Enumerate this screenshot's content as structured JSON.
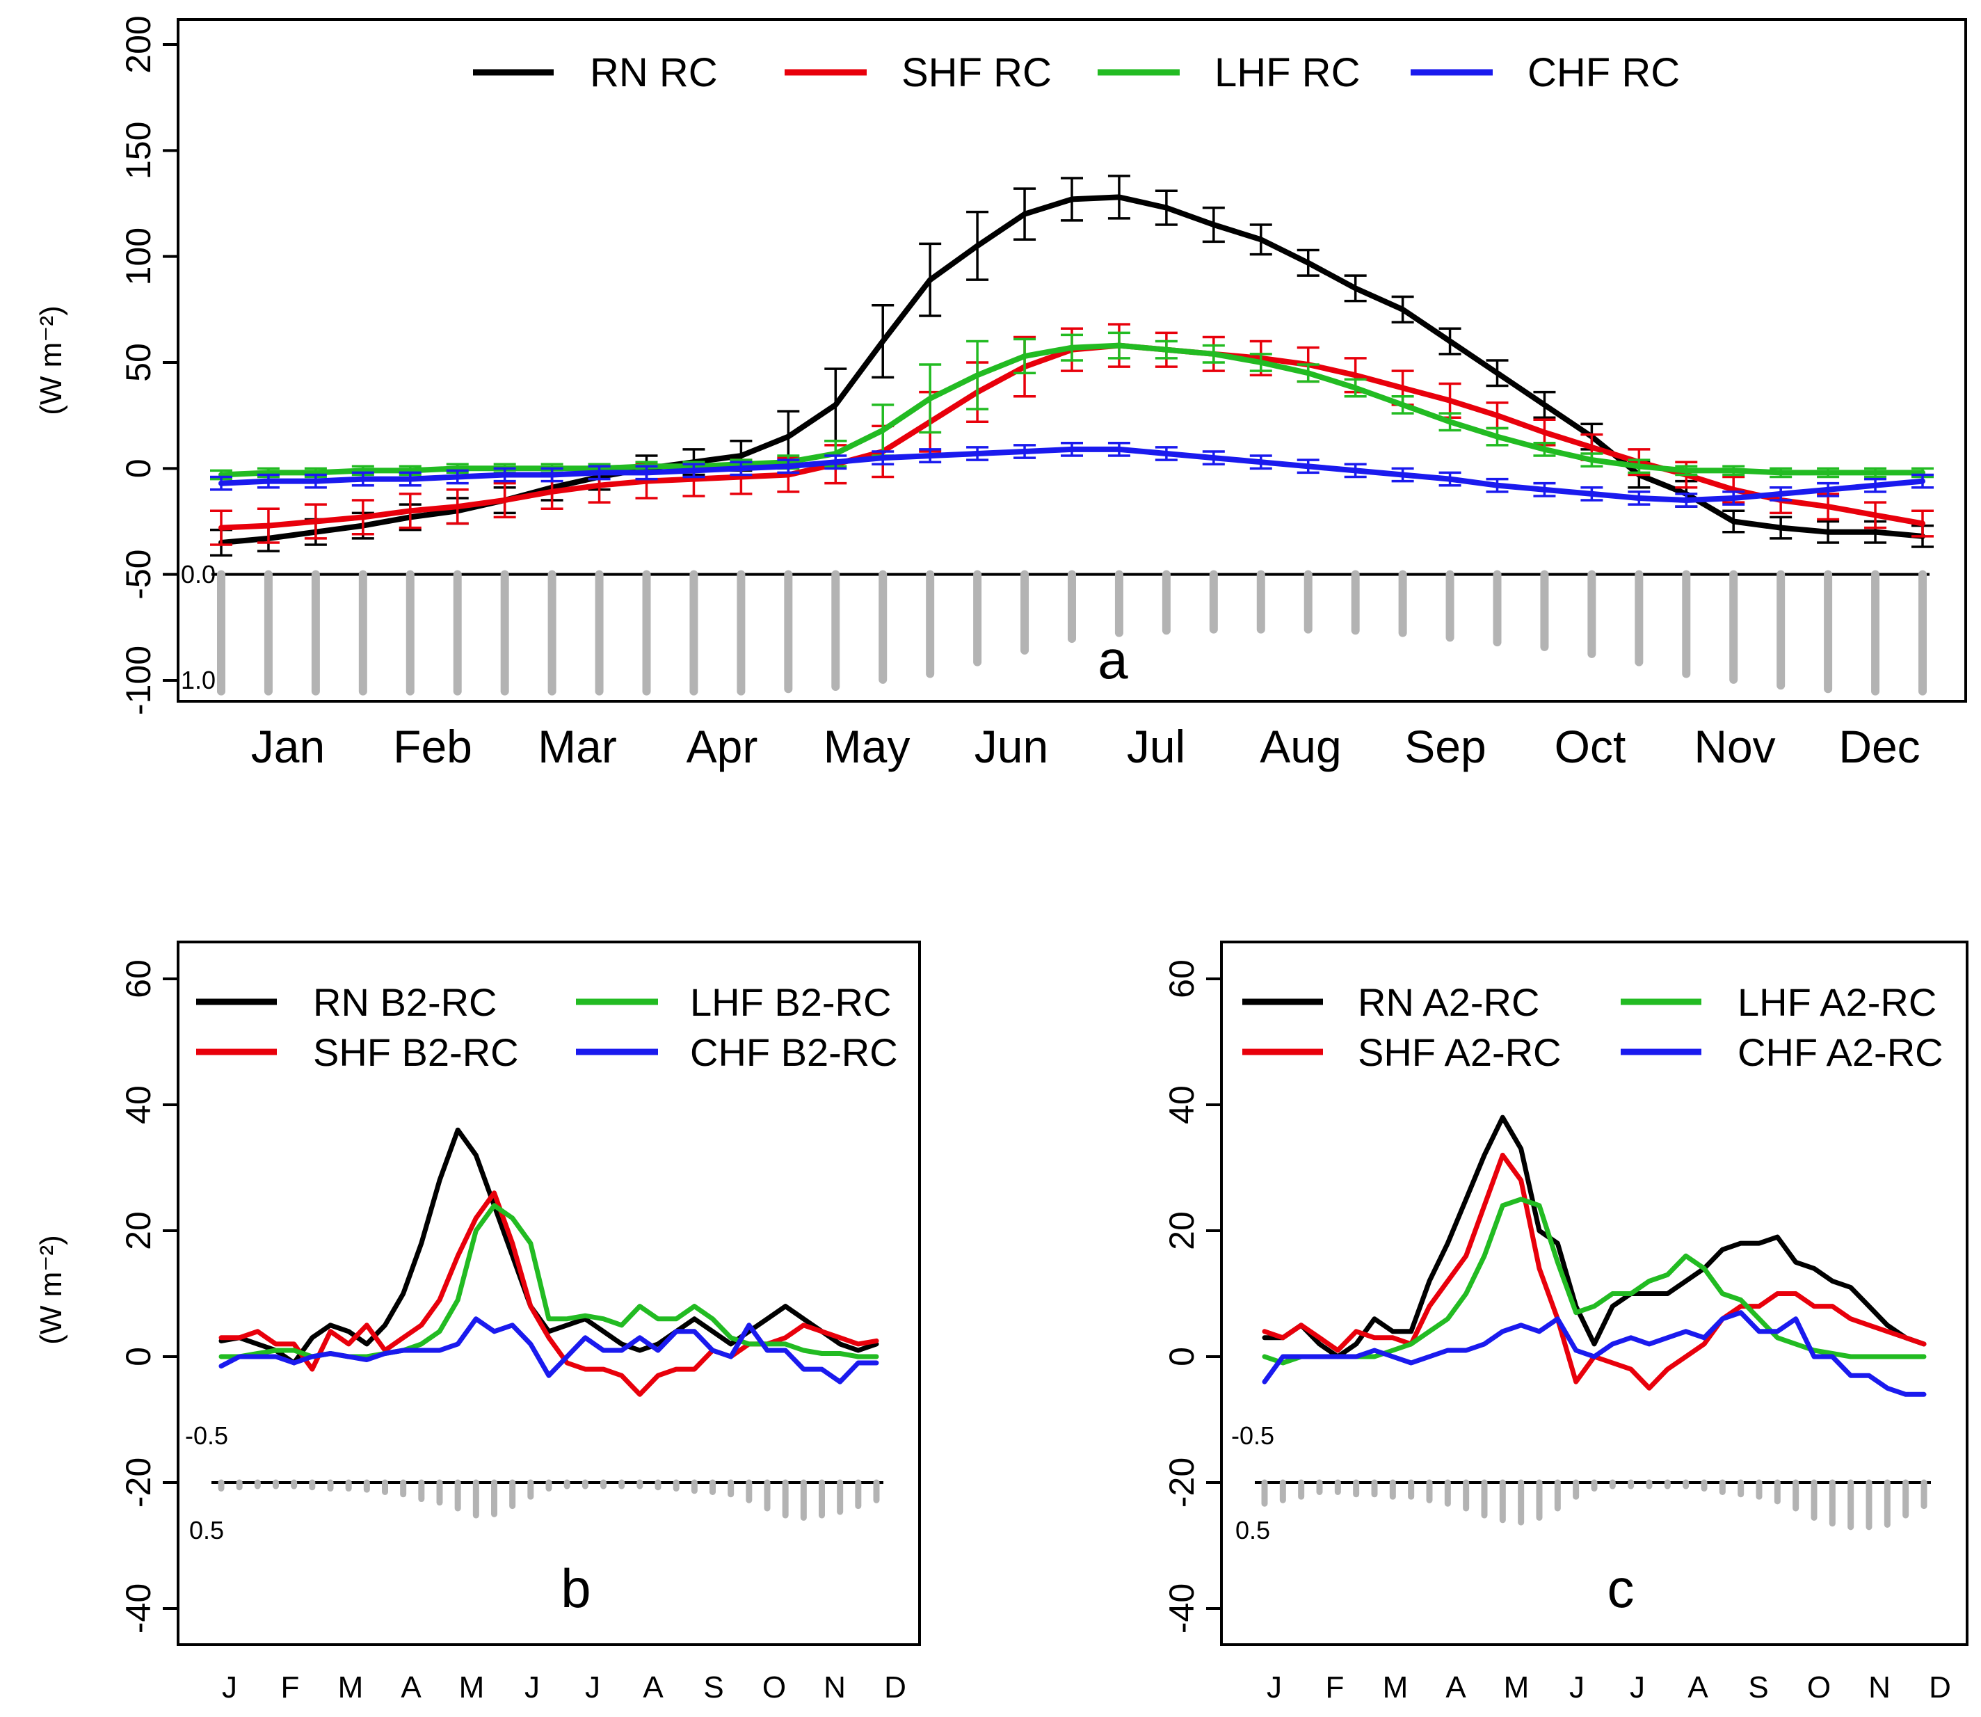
{
  "chart_data": [
    {
      "id": "a",
      "type": "line",
      "panel_label": "a",
      "ylabel": "(W m⁻²)",
      "ylim": [
        -100,
        200
      ],
      "yticks": [
        -100,
        -50,
        0,
        50,
        100,
        150,
        200
      ],
      "ytick_labels": [
        "-100",
        "-50",
        "0",
        "50",
        "100",
        "150",
        "200"
      ],
      "x_range": [
        0.5,
        36.5
      ],
      "month_labels": [
        "Jan",
        "Feb",
        "Mar",
        "Apr",
        "May",
        "Jun",
        "Jul",
        "Aug",
        "Sep",
        "Oct",
        "Nov",
        "Dec"
      ],
      "legend": [
        "RN RC",
        "SHF RC",
        "LHF RC",
        "CHF RC"
      ],
      "series": [
        {
          "name": "RN RC",
          "color": "#000000",
          "with_error_bars": true,
          "values": [
            -35,
            -33,
            -30,
            -27,
            -23,
            -20,
            -15,
            -9,
            -4,
            0,
            3,
            6,
            15,
            30,
            60,
            89,
            105,
            120,
            127,
            128,
            123,
            115,
            108,
            97,
            85,
            75,
            60,
            45,
            30,
            15,
            -3,
            -12,
            -25,
            -28,
            -30,
            -30,
            -32
          ],
          "err": [
            6,
            6,
            6,
            6,
            6,
            6,
            6,
            6,
            6,
            6,
            6,
            7,
            12,
            17,
            17,
            17,
            16,
            12,
            10,
            10,
            8,
            8,
            7,
            6,
            6,
            6,
            6,
            6,
            6,
            6,
            6,
            6,
            5,
            5,
            5,
            5,
            5
          ]
        },
        {
          "name": "SHF RC",
          "color": "#e8000b",
          "with_error_bars": true,
          "values": [
            -28,
            -27,
            -25,
            -23,
            -20,
            -18,
            -15,
            -11,
            -8,
            -6,
            -5,
            -4,
            -3,
            2,
            8,
            22,
            36,
            48,
            56,
            58,
            56,
            54,
            52,
            49,
            44,
            38,
            32,
            25,
            17,
            10,
            3,
            -3,
            -10,
            -15,
            -18,
            -22,
            -26
          ],
          "err": [
            8,
            8,
            8,
            8,
            8,
            8,
            8,
            8,
            8,
            8,
            8,
            8,
            8,
            9,
            12,
            14,
            14,
            14,
            10,
            10,
            8,
            8,
            8,
            8,
            8,
            8,
            8,
            6,
            6,
            6,
            6,
            6,
            6,
            6,
            6,
            6,
            6
          ]
        },
        {
          "name": "LHF RC",
          "color": "#22bb22",
          "with_error_bars": true,
          "values": [
            -3,
            -2,
            -2,
            -1,
            -1,
            0,
            0,
            0,
            0,
            1,
            1,
            2,
            3,
            7,
            18,
            33,
            44,
            53,
            57,
            58,
            56,
            54,
            50,
            45,
            38,
            30,
            22,
            15,
            9,
            4,
            1,
            -1,
            -1,
            -2,
            -2,
            -2,
            -2
          ],
          "err": [
            2,
            2,
            2,
            2,
            2,
            2,
            2,
            2,
            2,
            2,
            2,
            2,
            3,
            6,
            12,
            16,
            16,
            8,
            6,
            6,
            4,
            4,
            4,
            4,
            4,
            4,
            4,
            4,
            3,
            3,
            3,
            2,
            2,
            2,
            2,
            2,
            2
          ]
        },
        {
          "name": "CHF RC",
          "color": "#1a1aee",
          "with_error_bars": true,
          "values": [
            -7,
            -6,
            -6,
            -5,
            -5,
            -4,
            -3,
            -3,
            -2,
            -2,
            -1,
            0,
            1,
            3,
            5,
            6,
            7,
            8,
            9,
            9,
            7,
            5,
            3,
            1,
            -1,
            -3,
            -5,
            -8,
            -10,
            -12,
            -14,
            -15,
            -14,
            -12,
            -10,
            -8,
            -6
          ],
          "err": [
            3,
            3,
            3,
            3,
            3,
            3,
            3,
            3,
            3,
            3,
            3,
            3,
            3,
            3,
            3,
            3,
            3,
            3,
            3,
            3,
            3,
            3,
            3,
            3,
            3,
            3,
            3,
            3,
            3,
            3,
            3,
            3,
            3,
            3,
            3,
            3,
            3
          ]
        }
      ],
      "snow_bars": {
        "color": "#b3b3b3",
        "scale_labels": [
          "0.0",
          "1.0"
        ],
        "values": [
          1.0,
          1.0,
          1.0,
          1.0,
          1.0,
          1.0,
          1.0,
          1.0,
          1.0,
          1.0,
          1.0,
          1.0,
          0.98,
          0.96,
          0.9,
          0.85,
          0.75,
          0.65,
          0.55,
          0.5,
          0.48,
          0.47,
          0.47,
          0.47,
          0.48,
          0.5,
          0.54,
          0.58,
          0.62,
          0.68,
          0.75,
          0.85,
          0.9,
          0.95,
          0.98,
          1.0,
          1.0
        ]
      }
    },
    {
      "id": "b",
      "type": "line",
      "panel_label": "b",
      "ylabel": "(W m⁻²)",
      "ylim": [
        -40,
        60
      ],
      "yticks": [
        -40,
        -20,
        0,
        20,
        40,
        60
      ],
      "ytick_labels": [
        "-40",
        "-20",
        "0",
        "20",
        "40",
        "60"
      ],
      "x_range": [
        0.5,
        36.5
      ],
      "month_labels": [
        "J",
        "F",
        "M",
        "A",
        "M",
        "J",
        "J",
        "A",
        "S",
        "O",
        "N",
        "D"
      ],
      "legend": [
        "RN B2-RC",
        "LHF B2-RC",
        "SHF B2-RC",
        "CHF B2-RC"
      ],
      "series": [
        {
          "name": "RN B2-RC",
          "color": "#000000",
          "values": [
            2.5,
            3,
            2,
            1,
            -1,
            3,
            5,
            4,
            2,
            5,
            10,
            18,
            28,
            36,
            32,
            24,
            16,
            8,
            4,
            5,
            6,
            4,
            2,
            1,
            2,
            4,
            6,
            4,
            2,
            4,
            6,
            8,
            6,
            4,
            2,
            1,
            2
          ]
        },
        {
          "name": "SHF B2-RC",
          "color": "#e8000b",
          "values": [
            3,
            3,
            4,
            2,
            2,
            -2,
            4,
            2,
            5,
            1,
            3,
            5,
            9,
            16,
            22,
            26,
            18,
            8,
            3,
            -1,
            -2,
            -2,
            -3,
            -6,
            -3,
            -2,
            -2,
            1,
            0,
            2,
            2,
            3,
            5,
            4,
            3,
            2,
            2.5
          ]
        },
        {
          "name": "LHF B2-RC",
          "color": "#22bb22",
          "values": [
            0,
            0,
            0.5,
            1,
            1,
            0,
            0.5,
            0,
            0,
            0.5,
            1,
            2,
            4,
            9,
            20,
            24,
            22,
            18,
            6,
            6,
            6.5,
            6,
            5,
            8,
            6,
            6,
            8,
            6,
            3,
            2,
            2,
            2,
            1,
            0.5,
            0.5,
            0,
            0
          ]
        },
        {
          "name": "CHF B2-RC",
          "color": "#1a1aee",
          "values": [
            -1.5,
            0,
            0,
            0,
            -1,
            0,
            0.5,
            0,
            -0.5,
            0.5,
            1,
            1,
            1,
            2,
            6,
            4,
            5,
            2,
            -3,
            0,
            3,
            1,
            1,
            3,
            1,
            4,
            4,
            1,
            0,
            5,
            1,
            1,
            -2,
            -2,
            -4,
            -1,
            -1
          ]
        }
      ],
      "snow_bars": {
        "color": "#b3b3b3",
        "scale_labels": [
          "-0.5",
          "0.5"
        ],
        "values": [
          0.05,
          0.04,
          0.03,
          0.03,
          0.03,
          0.04,
          0.05,
          0.05,
          0.06,
          0.08,
          0.1,
          0.14,
          0.17,
          0.22,
          0.28,
          0.27,
          0.2,
          0.12,
          0.05,
          0.03,
          0.03,
          0.03,
          0.03,
          0.03,
          0.04,
          0.05,
          0.07,
          0.08,
          0.1,
          0.15,
          0.22,
          0.28,
          0.3,
          0.28,
          0.25,
          0.2,
          0.15
        ]
      }
    },
    {
      "id": "c",
      "type": "line",
      "panel_label": "c",
      "ylabel": "(W m⁻²)",
      "ylim": [
        -40,
        60
      ],
      "yticks": [
        -40,
        -20,
        0,
        20,
        40,
        60
      ],
      "ytick_labels": [
        "-40",
        "-20",
        "0",
        "20",
        "40",
        "60"
      ],
      "x_range": [
        0.5,
        36.5
      ],
      "month_labels": [
        "J",
        "F",
        "M",
        "A",
        "M",
        "J",
        "J",
        "A",
        "S",
        "O",
        "N",
        "D"
      ],
      "legend": [
        "RN A2-RC",
        "LHF A2-RC",
        "SHF A2-RC",
        "CHF A2-RC"
      ],
      "series": [
        {
          "name": "RN A2-RC",
          "color": "#000000",
          "values": [
            3,
            3,
            5,
            2,
            0,
            2,
            6,
            4,
            4,
            12,
            18,
            25,
            32,
            38,
            33,
            20,
            18,
            8,
            2,
            8,
            10,
            10,
            10,
            12,
            14,
            17,
            18,
            18,
            19,
            15,
            14,
            12,
            11,
            8,
            5,
            3,
            2
          ]
        },
        {
          "name": "SHF A2-RC",
          "color": "#e8000b",
          "values": [
            4,
            3,
            5,
            3,
            1,
            4,
            3,
            3,
            2,
            8,
            12,
            16,
            24,
            32,
            28,
            14,
            6,
            -4,
            0,
            -1,
            -2,
            -5,
            -2,
            0,
            2,
            6,
            8,
            8,
            10,
            10,
            8,
            8,
            6,
            5,
            4,
            3,
            2
          ]
        },
        {
          "name": "LHF A2-RC",
          "color": "#22bb22",
          "values": [
            0,
            -1,
            0,
            0,
            0,
            0,
            0,
            1,
            2,
            4,
            6,
            10,
            16,
            24,
            25,
            24,
            15,
            7,
            8,
            10,
            10,
            12,
            13,
            16,
            14,
            10,
            9,
            6,
            3,
            2,
            1,
            0.5,
            0,
            0,
            0,
            0,
            0
          ]
        },
        {
          "name": "CHF A2-RC",
          "color": "#1a1aee",
          "values": [
            -4,
            0,
            0,
            0,
            0,
            0,
            1,
            0,
            -1,
            0,
            1,
            1,
            2,
            4,
            5,
            4,
            6,
            1,
            0,
            2,
            3,
            2,
            3,
            4,
            3,
            6,
            7,
            4,
            4,
            6,
            0,
            0,
            -3,
            -3,
            -5,
            -6,
            -6
          ]
        }
      ],
      "snow_bars": {
        "color": "#b3b3b3",
        "scale_labels": [
          "-0.5",
          "0.5"
        ],
        "values": [
          0.18,
          0.15,
          0.12,
          0.08,
          0.08,
          0.1,
          0.1,
          0.12,
          0.12,
          0.15,
          0.18,
          0.22,
          0.28,
          0.32,
          0.34,
          0.3,
          0.22,
          0.12,
          0.05,
          0.03,
          0.03,
          0.03,
          0.03,
          0.03,
          0.05,
          0.08,
          0.1,
          0.12,
          0.16,
          0.22,
          0.3,
          0.35,
          0.38,
          0.38,
          0.36,
          0.28,
          0.2
        ]
      }
    }
  ]
}
